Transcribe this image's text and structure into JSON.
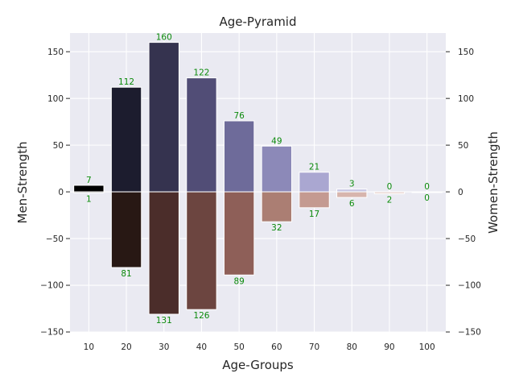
{
  "chart_data": {
    "type": "bar",
    "title": "Age-Pyramid",
    "xlabel": "Age-Groups",
    "ylabel_left": "Men-Strength",
    "ylabel_right": "Women-Strength",
    "categories": [
      "10",
      "20",
      "30",
      "40",
      "50",
      "60",
      "70",
      "80",
      "90",
      "100"
    ],
    "series": [
      {
        "name": "Men",
        "values": [
          7,
          112,
          160,
          122,
          76,
          49,
          21,
          3,
          0,
          0
        ],
        "colors": [
          "#000000",
          "#1c1c2e",
          "#35334f",
          "#514d76",
          "#6e6b9a",
          "#8c89b8",
          "#aaa7d1",
          "#c8c6e3",
          "#e0dff0",
          "#eeeef7"
        ]
      },
      {
        "name": "Women",
        "values": [
          1,
          81,
          131,
          126,
          89,
          32,
          17,
          6,
          2,
          0
        ],
        "colors": [
          "#0d0808",
          "#281814",
          "#4b2d2a",
          "#6c4540",
          "#8e5f58",
          "#ab7e73",
          "#c49a91",
          "#d7b5ad",
          "#e8d3ce",
          "#f2e6e3"
        ]
      }
    ],
    "ylim": [
      -150,
      170
    ],
    "yticks": [
      -150,
      -100,
      -50,
      0,
      50,
      100,
      150
    ],
    "ytick_labels": [
      "−150",
      "−100",
      "−50",
      "0",
      "50",
      "100",
      "150"
    ],
    "grid": true,
    "background": "#eaeaf2",
    "data_label_color": "#0b8a0b"
  }
}
